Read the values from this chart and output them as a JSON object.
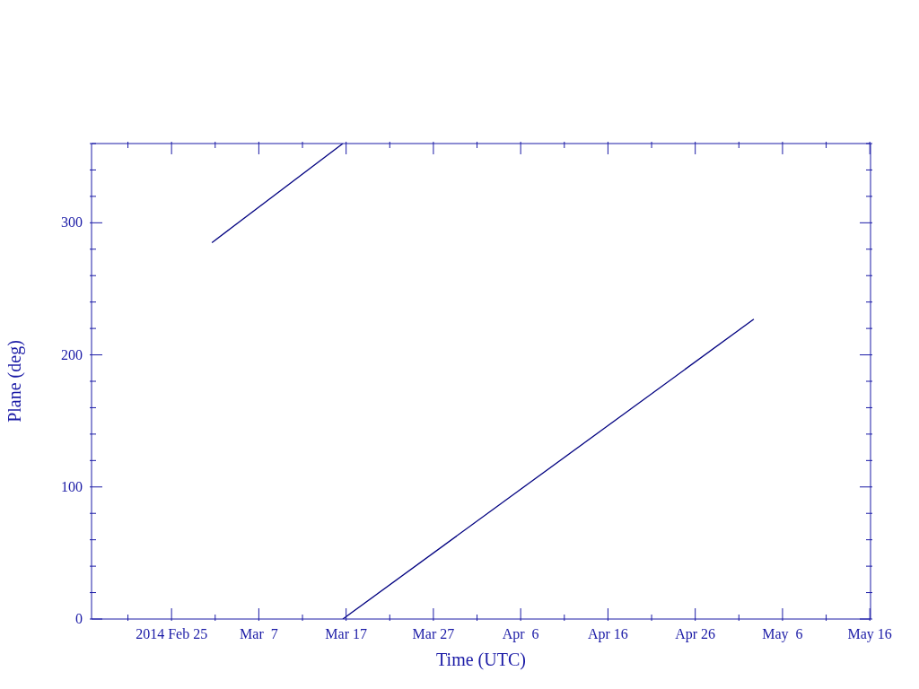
{
  "chart_data": {
    "type": "line",
    "xlabel": "Time (UTC)",
    "ylabel": "Plane (deg)",
    "xlim": [
      "2014-02-15T20:00",
      "2014-05-16T02:00"
    ],
    "xticks": [
      {
        "value": "2014-02-20",
        "label": null
      },
      {
        "value": "2014-02-25",
        "label": "2014 Feb 25"
      },
      {
        "value": "2014-03-02",
        "label": null
      },
      {
        "value": "2014-03-07",
        "label": "Mar  7"
      },
      {
        "value": "2014-03-12",
        "label": null
      },
      {
        "value": "2014-03-17",
        "label": "Mar 17"
      },
      {
        "value": "2014-03-22",
        "label": null
      },
      {
        "value": "2014-03-27",
        "label": "Mar 27"
      },
      {
        "value": "2014-04-01",
        "label": null
      },
      {
        "value": "2014-04-06",
        "label": "Apr  6"
      },
      {
        "value": "2014-04-11",
        "label": null
      },
      {
        "value": "2014-04-16",
        "label": "Apr 16"
      },
      {
        "value": "2014-04-21",
        "label": null
      },
      {
        "value": "2014-04-26",
        "label": "Apr 26"
      },
      {
        "value": "2014-05-01",
        "label": null
      },
      {
        "value": "2014-05-06",
        "label": "May  6"
      },
      {
        "value": "2014-05-11",
        "label": null
      },
      {
        "value": "2014-05-16",
        "label": "May 16"
      }
    ],
    "ylim": [
      0,
      360
    ],
    "yticks": [
      0,
      {
        "value": 20,
        "label": null
      },
      {
        "value": 40,
        "label": null
      },
      {
        "value": 60,
        "label": null
      },
      {
        "value": 80,
        "label": null
      },
      100,
      {
        "value": 120,
        "label": null
      },
      {
        "value": 140,
        "label": null
      },
      {
        "value": 160,
        "label": null
      },
      {
        "value": 180,
        "label": null
      },
      200,
      {
        "value": 220,
        "label": null
      },
      {
        "value": 240,
        "label": null
      },
      {
        "value": 260,
        "label": null
      },
      {
        "value": 280,
        "label": null
      },
      300,
      {
        "value": 320,
        "label": null
      },
      {
        "value": 340,
        "label": null
      },
      {
        "value": 360,
        "label": null
      }
    ],
    "series": [
      {
        "color": "#000080",
        "x": [
          "2014-03-01T15:00",
          "2014-03-16T15:00"
        ],
        "values": [
          285,
          360
        ]
      },
      {
        "color": "#000080",
        "x": [
          "2014-03-16T15:00",
          "2014-05-02T17:00"
        ],
        "values": [
          0,
          227
        ]
      }
    ],
    "grid": false,
    "marker": "none",
    "line_style": "solid"
  }
}
